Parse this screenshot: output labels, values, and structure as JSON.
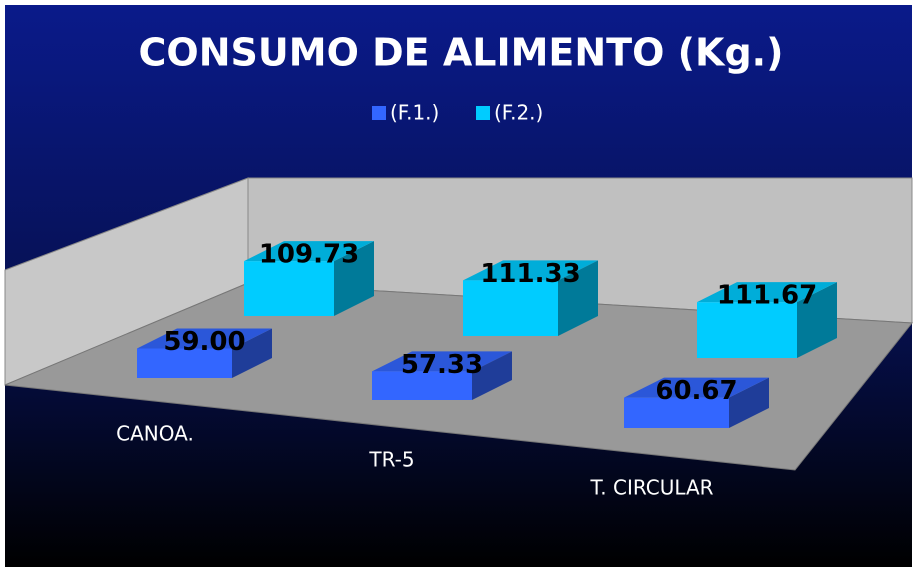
{
  "chart_data": {
    "type": "bar3d",
    "title": "CONSUMO DE ALIMENTO (Kg.)",
    "categories": [
      "CANOA.",
      "TR-5",
      "T. CIRCULAR"
    ],
    "series": [
      {
        "name": "(F.1.)",
        "color": "#3366ff",
        "values": [
          59.0,
          57.33,
          60.67
        ],
        "value_labels": [
          "59.00",
          "57.33",
          "60.67"
        ]
      },
      {
        "name": "(F.2.)",
        "color": "#00ccff",
        "values": [
          109.73,
          111.33,
          111.67
        ],
        "value_labels": [
          "109.73",
          "111.33",
          "111.67"
        ]
      }
    ],
    "legend": "top"
  }
}
